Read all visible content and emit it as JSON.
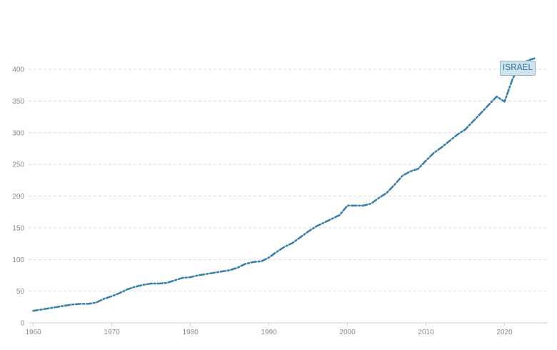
{
  "chart_data": {
    "type": "line",
    "title": "",
    "xlabel": "",
    "ylabel": "",
    "xlim": [
      1959.4,
      2025.5
    ],
    "ylim": [
      0,
      400
    ],
    "x_ticks": [
      1960,
      1970,
      1980,
      1990,
      2000,
      2010,
      2020
    ],
    "y_ticks": [
      0,
      50,
      100,
      150,
      200,
      250,
      300,
      350,
      400
    ],
    "grid": "horizontal dashed",
    "legend": "none",
    "series": [
      {
        "name": "ISRAEL",
        "color": "#3a80ac",
        "x": [
          1960,
          1961,
          1962,
          1963,
          1964,
          1965,
          1966,
          1967,
          1968,
          1969,
          1970,
          1971,
          1972,
          1973,
          1974,
          1975,
          1976,
          1977,
          1978,
          1979,
          1980,
          1981,
          1982,
          1983,
          1984,
          1985,
          1986,
          1987,
          1988,
          1989,
          1990,
          1991,
          1992,
          1993,
          1994,
          1995,
          1996,
          1997,
          1998,
          1999,
          2000,
          2001,
          2002,
          2003,
          2004,
          2005,
          2006,
          2007,
          2008,
          2009,
          2010,
          2011,
          2012,
          2013,
          2014,
          2015,
          2016,
          2017,
          2018,
          2019,
          2020,
          2021,
          2022,
          2023,
          2024
        ],
        "values": [
          19,
          21,
          23,
          25,
          27,
          29,
          30,
          30,
          32,
          38,
          42,
          47,
          53,
          57,
          60,
          62,
          62,
          63,
          67,
          71,
          72,
          75,
          77,
          79,
          81,
          83,
          87,
          93,
          96,
          97,
          103,
          112,
          120,
          126,
          135,
          144,
          152,
          158,
          164,
          170,
          185,
          185,
          185,
          188,
          197,
          205,
          218,
          232,
          239,
          243,
          256,
          268,
          277,
          287,
          297,
          305,
          318,
          331,
          344,
          357,
          349,
          384,
          407,
          414,
          418
        ]
      }
    ]
  },
  "colors": {
    "series": "#3a80ac",
    "grid": "#d9d9d9",
    "tick_text": "#8a8a8a",
    "label_bg": "#cfe3ef",
    "label_border": "#8fb4cc"
  }
}
